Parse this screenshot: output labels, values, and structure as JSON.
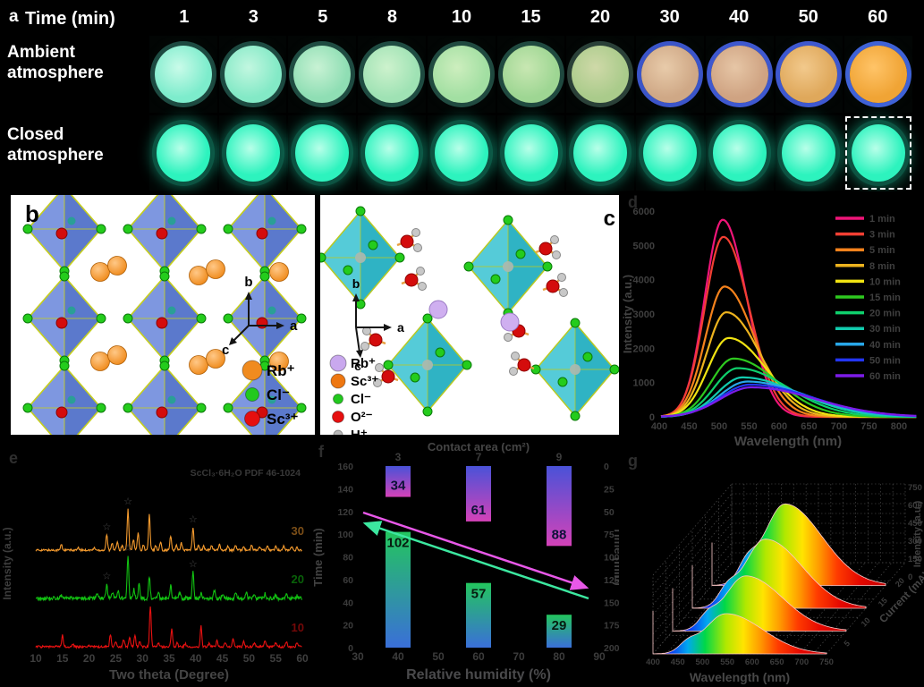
{
  "figure": {
    "panel_a": {
      "letter": "a",
      "time_label": "Time  (min)",
      "times": [
        "1",
        "3",
        "5",
        "8",
        "10",
        "15",
        "20",
        "30",
        "40",
        "50",
        "60"
      ],
      "row_ambient": {
        "line1": "Ambient",
        "line2": "atmosphere"
      },
      "row_closed": {
        "line1": "Closed",
        "line2": "atmosphere"
      },
      "ambient_samples": [
        {
          "hi": "#c9fbe9",
          "fill": "#7deccc",
          "rim": "#1d4a41"
        },
        {
          "hi": "#c2f7e0",
          "fill": "#83e9c6",
          "rim": "#1d4a41"
        },
        {
          "hi": "#c8f2d4",
          "fill": "#8fdeb4",
          "rim": "#1f4c42"
        },
        {
          "hi": "#cdf2cd",
          "fill": "#9fe2b4",
          "rim": "#1f4c42"
        },
        {
          "hi": "#cdeebe",
          "fill": "#a2dfa2",
          "rim": "#204a40"
        },
        {
          "hi": "#c8e7b2",
          "fill": "#9ed693",
          "rim": "#204a40"
        },
        {
          "hi": "#cfd9a8",
          "fill": "#aacb8b",
          "rim": "#2a4038"
        },
        {
          "hi": "#e8cbaa",
          "fill": "#cfa886",
          "rim": "#3b55c9"
        },
        {
          "hi": "#e6c6a6",
          "fill": "#cfa382",
          "rim": "#3e58cf"
        },
        {
          "hi": "#f2c98c",
          "fill": "#dfa85b",
          "rim": "#3e58cf"
        },
        {
          "hi": "#ffc468",
          "fill": "#f0a435",
          "rim": "#3f62d6"
        }
      ],
      "closed_sample": {
        "hi": "#b8ffe9",
        "fill": "#2df3be",
        "rim": "#0d5342"
      },
      "highlight_last_closed": true
    },
    "panel_b": {
      "letter": "b",
      "axis_labels": {
        "up": "b",
        "right": "a",
        "downleft": "c"
      },
      "legend": [
        {
          "label": "Rb⁺",
          "color": "#f08b1f",
          "radius": 11
        },
        {
          "label": "Cl⁻",
          "color": "#22c91e",
          "radius": 7.5
        },
        {
          "label": "Sc³⁺",
          "color": "#e60f0f",
          "radius": 8.5
        }
      ]
    },
    "panel_c": {
      "letter": "c",
      "axis_labels": {
        "up": "b",
        "right": "a",
        "down": "c"
      },
      "legend": [
        {
          "label": "Rb⁺",
          "color": "#c9a8ee",
          "radius": 9
        },
        {
          "label": "Sc³⁺",
          "color": "#ee7711",
          "radius": 8
        },
        {
          "label": "Cl⁻",
          "color": "#22c91e",
          "radius": 5.5
        },
        {
          "label": "O²⁻",
          "color": "#e60f0f",
          "radius": 6.5
        },
        {
          "label": "H⁺",
          "color": "#b9b9b9",
          "radius": 5
        }
      ]
    },
    "panel_d_letter": "d",
    "panel_e_letter": "e",
    "panel_f_letter": "f",
    "panel_g_letter": "g"
  },
  "chart_data": [
    {
      "id": "pl_spectra",
      "type": "line",
      "xlabel": "Wavelength (nm)",
      "ylabel": "Intensity (a.u.)",
      "xlim": [
        400,
        830
      ],
      "ylim": [
        0,
        6000
      ],
      "xticks": [
        400,
        450,
        500,
        550,
        600,
        650,
        700,
        750,
        800
      ],
      "yticks": [
        0,
        1000,
        2000,
        3000,
        4000,
        5000,
        6000
      ],
      "legend_position": "upper right",
      "series": [
        {
          "name": "1 min",
          "color": "#ef1578",
          "peak_nm": 506,
          "peak_intensity": 5750,
          "width_left": 30,
          "width_right": 40
        },
        {
          "name": "3 min",
          "color": "#f23f33",
          "peak_nm": 507,
          "peak_intensity": 5250,
          "width_left": 31,
          "width_right": 43
        },
        {
          "name": "5 min",
          "color": "#f5821c",
          "peak_nm": 509,
          "peak_intensity": 3800,
          "width_left": 32,
          "width_right": 50
        },
        {
          "name": "8 min",
          "color": "#edb31e",
          "peak_nm": 512,
          "peak_intensity": 3050,
          "width_left": 33,
          "width_right": 56
        },
        {
          "name": "10 min",
          "color": "#f0e312",
          "peak_nm": 516,
          "peak_intensity": 2300,
          "width_left": 35,
          "width_right": 63
        },
        {
          "name": "15 min",
          "color": "#2ec81f",
          "peak_nm": 524,
          "peak_intensity": 1700,
          "width_left": 37,
          "width_right": 73
        },
        {
          "name": "20 min",
          "color": "#0fd06c",
          "peak_nm": 531,
          "peak_intensity": 1420,
          "width_left": 39,
          "width_right": 83
        },
        {
          "name": "30 min",
          "color": "#12ccae",
          "peak_nm": 539,
          "peak_intensity": 1150,
          "width_left": 42,
          "width_right": 93
        },
        {
          "name": "40 min",
          "color": "#28a7e8",
          "peak_nm": 547,
          "peak_intensity": 1030,
          "width_left": 46,
          "width_right": 99
        },
        {
          "name": "50 min",
          "color": "#2336f2",
          "peak_nm": 552,
          "peak_intensity": 940,
          "width_left": 50,
          "width_right": 103
        },
        {
          "name": "60 min",
          "color": "#7c1ce8",
          "peak_nm": 554,
          "peak_intensity": 860,
          "width_left": 52,
          "width_right": 106
        }
      ]
    },
    {
      "id": "xrd",
      "type": "line",
      "xlabel": "Two theta (Degree)",
      "ylabel": "Intensity (a.u.)",
      "xlim": [
        10,
        60
      ],
      "xticks": [
        10,
        15,
        20,
        25,
        30,
        35,
        40,
        45,
        50,
        55,
        60
      ],
      "annotation": "ScCl₃·6H₂O PDF 46-1024",
      "series": [
        {
          "name": "30",
          "color": "#f59b2e",
          "noise": 1.2,
          "starred_peaks": [
            23.3,
            27.3,
            39.5
          ],
          "peaks": [
            [
              14.8,
              0.14
            ],
            [
              18,
              0.05
            ],
            [
              21,
              0.06
            ],
            [
              23.3,
              0.38
            ],
            [
              24.3,
              0.18
            ],
            [
              25.3,
              0.22
            ],
            [
              26.2,
              0.12
            ],
            [
              27.3,
              1.0
            ],
            [
              28.3,
              0.26
            ],
            [
              29.2,
              0.42
            ],
            [
              30.2,
              0.12
            ],
            [
              31.3,
              0.88
            ],
            [
              32.5,
              0.12
            ],
            [
              33.4,
              0.2
            ],
            [
              35.3,
              0.34
            ],
            [
              36.4,
              0.12
            ],
            [
              37.3,
              0.18
            ],
            [
              39.5,
              0.56
            ],
            [
              40.5,
              0.12
            ],
            [
              41.5,
              0.1
            ],
            [
              43,
              0.12
            ],
            [
              44.5,
              0.14
            ],
            [
              46,
              0.1
            ],
            [
              47.5,
              0.12
            ],
            [
              49,
              0.1
            ],
            [
              50.5,
              0.12
            ],
            [
              52,
              0.08
            ],
            [
              53.5,
              0.1
            ],
            [
              55,
              0.08
            ],
            [
              56.5,
              0.1
            ],
            [
              58,
              0.08
            ],
            [
              59,
              0.06
            ]
          ]
        },
        {
          "name": "20",
          "color": "#12c112",
          "noise": 2.2,
          "starred_peaks": [
            23.3,
            27.3,
            39.5
          ],
          "peaks": [
            [
              14.8,
              0.06
            ],
            [
              21.5,
              0.08
            ],
            [
              23.3,
              0.34
            ],
            [
              24.4,
              0.16
            ],
            [
              25.4,
              0.18
            ],
            [
              27.3,
              1.0
            ],
            [
              28.4,
              0.22
            ],
            [
              29.4,
              0.34
            ],
            [
              31.3,
              0.52
            ],
            [
              33,
              0.14
            ],
            [
              35.3,
              0.3
            ],
            [
              37,
              0.14
            ],
            [
              39.5,
              0.62
            ],
            [
              41,
              0.14
            ],
            [
              43.5,
              0.18
            ],
            [
              45,
              0.1
            ],
            [
              47.5,
              0.16
            ],
            [
              49.5,
              0.14
            ],
            [
              51,
              0.1
            ],
            [
              53,
              0.12
            ],
            [
              55,
              0.08
            ],
            [
              57,
              0.1
            ],
            [
              59,
              0.06
            ]
          ]
        },
        {
          "name": "10",
          "color": "#e81111",
          "noise": 1.2,
          "starred_peaks": [],
          "peaks": [
            [
              15,
              0.28
            ],
            [
              17,
              0.06
            ],
            [
              20,
              0.05
            ],
            [
              24,
              0.3
            ],
            [
              25,
              0.14
            ],
            [
              26.5,
              0.18
            ],
            [
              27.6,
              0.22
            ],
            [
              28.6,
              0.3
            ],
            [
              29.5,
              0.12
            ],
            [
              31.5,
              1.0
            ],
            [
              33,
              0.1
            ],
            [
              35.5,
              0.45
            ],
            [
              36.5,
              0.1
            ],
            [
              38,
              0.08
            ],
            [
              41,
              0.5
            ],
            [
              42.5,
              0.08
            ],
            [
              44,
              0.14
            ],
            [
              45.5,
              0.1
            ],
            [
              47,
              0.2
            ],
            [
              49,
              0.14
            ],
            [
              51,
              0.1
            ],
            [
              53,
              0.16
            ],
            [
              55,
              0.1
            ],
            [
              57,
              0.12
            ],
            [
              59,
              0.08
            ]
          ]
        }
      ]
    },
    {
      "id": "humidity_bars",
      "type": "bar",
      "xlabel_bottom": "Relative humidity (%)",
      "xlabel_top": "Contact area (cm²)",
      "ylabel_left": "Time (min)",
      "ylabel_right": "Time (min)",
      "xticks_bottom": [
        30,
        40,
        50,
        60,
        70,
        80,
        90
      ],
      "xticks_top": [
        "3",
        "7",
        "9"
      ],
      "ylim_left": [
        0,
        160
      ],
      "yticks_left": [
        0,
        20,
        40,
        60,
        80,
        100,
        120,
        140,
        160
      ],
      "ylim_right": [
        0,
        200
      ],
      "yticks_right": [
        0,
        25,
        50,
        75,
        100,
        125,
        150,
        175,
        200
      ],
      "categories_humidity": [
        40,
        60,
        80
      ],
      "series": [
        {
          "name": "time-vs-humidity",
          "direction": "up",
          "axis": "left",
          "color_top": "#23c55e",
          "color_bottom": "#3a6fd9",
          "values": [
            102,
            57,
            29
          ]
        },
        {
          "name": "time-vs-contact-area",
          "direction": "down",
          "axis": "right",
          "color_top": "#4a52d8",
          "color_bottom": "#d442b8",
          "values": [
            34,
            61,
            88
          ]
        }
      ],
      "arrows": [
        {
          "color": "#e858e8",
          "direction": "down-right"
        },
        {
          "color": "#3ce8a0",
          "direction": "up-left"
        }
      ]
    },
    {
      "id": "waterfall_3d",
      "type": "area",
      "xlabel": "Wavelength (nm)",
      "ylabel": "Intensity (a.u.)",
      "zlabel": "Current (mA)",
      "xticks": [
        400,
        450,
        500,
        550,
        600,
        650,
        700,
        750
      ],
      "yticks": [
        0,
        150,
        300,
        450,
        600,
        750
      ],
      "zticks": [
        5,
        10,
        15,
        20
      ],
      "series": [
        {
          "current": 5,
          "peak_intensity": 390
        },
        {
          "current": 10,
          "peak_intensity": 535
        },
        {
          "current": 15,
          "peak_intensity": 670
        },
        {
          "current": 20,
          "peak_intensity": 790
        }
      ]
    }
  ]
}
